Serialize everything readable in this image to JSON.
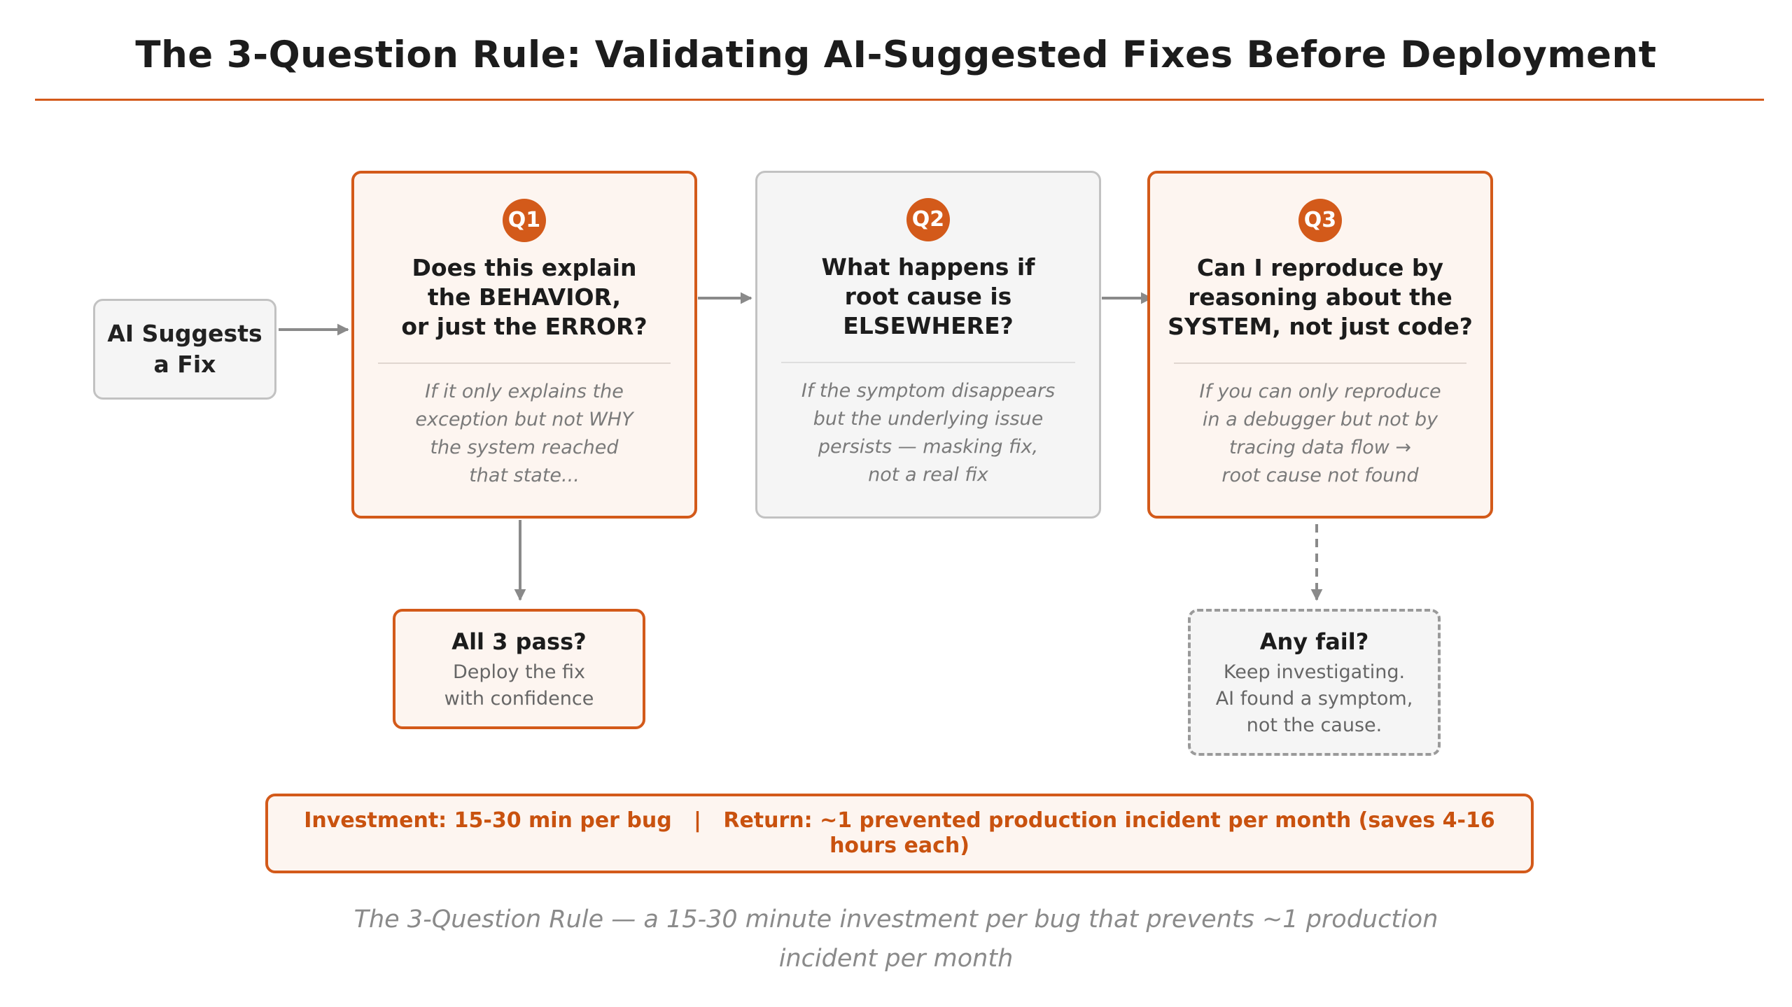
{
  "title": "The 3-Question Rule: Validating AI-Suggested Fixes Before Deployment",
  "start": {
    "label_line1": "AI Suggests",
    "label_line2": "a Fix"
  },
  "questions": [
    {
      "badge": "Q1",
      "title_lines": [
        "Does this explain",
        "the BEHAVIOR,",
        "or just the ERROR?"
      ],
      "note_lines": [
        "If it only explains the",
        "exception but not WHY",
        "the system reached",
        "that state..."
      ]
    },
    {
      "badge": "Q2",
      "title_lines": [
        "What happens if",
        "root cause is",
        "ELSEWHERE?"
      ],
      "note_lines": [
        "If the symptom disappears",
        "but the underlying issue",
        "persists — masking fix,",
        "not a real fix"
      ]
    },
    {
      "badge": "Q3",
      "title_lines": [
        "Can I reproduce by",
        "reasoning about the",
        "SYSTEM, not just code?"
      ],
      "note_lines": [
        "If you can only reproduce",
        "in a debugger but not by",
        "tracing data flow →",
        "root cause not found"
      ]
    }
  ],
  "pass": {
    "heading": "All 3 pass?",
    "body_lines": [
      "Deploy the fix",
      "with confidence"
    ]
  },
  "fail": {
    "heading": "Any fail?",
    "body_lines": [
      "Keep investigating.",
      "AI found a symptom,",
      "not the cause."
    ]
  },
  "banner": "Investment: 15-30 min per bug   |   Return: ~1 prevented production incident per month (saves 4-16 hours each)",
  "caption": "The 3-Question Rule — a 15-30 minute investment per bug that prevents ~1 production incident per month",
  "colors": {
    "accent": "#d35a1a",
    "neutral_border": "#c2c2c2",
    "arrow": "#8a8a8a"
  }
}
